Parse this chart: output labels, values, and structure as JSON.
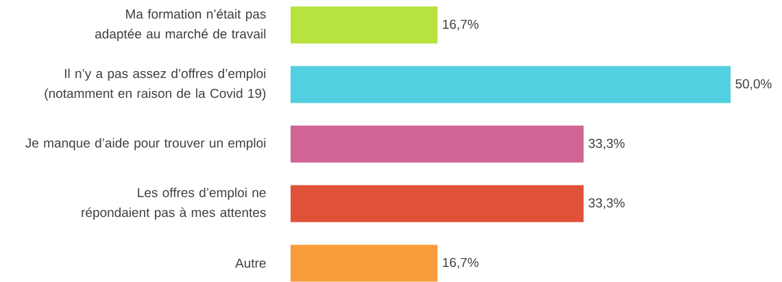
{
  "chart_data": {
    "type": "bar",
    "orientation": "horizontal",
    "categories": [
      "Ma formation n’était pas adaptée au marché de travail",
      "Il n’y a pas assez d’offres d’emploi (notamment en raison de la Covid 19)",
      "Je manque d’aide pour trouver un emploi",
      "Les offres d’emploi ne répondaient pas à mes attentes",
      "Autre"
    ],
    "values": [
      16.7,
      50.0,
      33.3,
      33.3,
      16.7
    ],
    "value_labels": [
      "16,7%",
      "50,0%",
      "33,3%",
      "33,3%",
      "16,7%"
    ],
    "colors": [
      "#b8e23e",
      "#52cfe0",
      "#d06494",
      "#e05238",
      "#f99d3c"
    ]
  }
}
